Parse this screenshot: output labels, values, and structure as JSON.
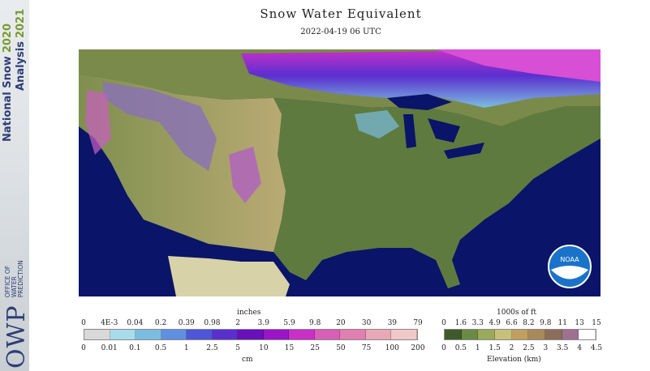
{
  "title": "Snow Water Equivalent",
  "timestamp": "2022-04-19 06 UTC",
  "banner": {
    "line1": "National Snow",
    "line1_year": "2020",
    "line2": "Analysis",
    "line2_year": "2021",
    "logo": "OWP",
    "org_lines": [
      "OFFICE OF",
      "WATER",
      "PREDICTION"
    ]
  },
  "noaa_logo": "NOAA",
  "swe_legend": {
    "top_unit": "inches",
    "bottom_unit": "cm",
    "inches_ticks": [
      "0",
      "4E-3",
      "0.04",
      "0.2",
      "0.39",
      "0.98",
      "2",
      "3.9",
      "5.9",
      "9.8",
      "20",
      "30",
      "39",
      "79"
    ],
    "cm_ticks": [
      "0",
      "0.01",
      "0.1",
      "0.5",
      "1",
      "2.5",
      "5",
      "10",
      "15",
      "25",
      "50",
      "75",
      "100",
      "200"
    ],
    "colors": [
      "#d9d9d9",
      "#a8dcea",
      "#7bbde0",
      "#5f8fe0",
      "#4f55d8",
      "#5a2fd0",
      "#6a10b8",
      "#9a14c8",
      "#c830c8",
      "#d85fb5",
      "#e07fb0",
      "#e8a8b8",
      "#f0c8c8"
    ]
  },
  "elev_legend": {
    "top_unit": "1000s of ft",
    "bottom_unit": "Elevation (km)",
    "ft_ticks": [
      "0",
      "1.6",
      "3.3",
      "4.9",
      "6.6",
      "8.2",
      "9.8",
      "11",
      "13",
      "15"
    ],
    "km_ticks": [
      "0",
      "0.5",
      "1",
      "1.5",
      "2",
      "2.5",
      "3",
      "3.5",
      "4",
      "4.5"
    ],
    "colors": [
      "#3f5a2a",
      "#6b8b45",
      "#9aaa5a",
      "#c8c07a",
      "#c0a060",
      "#a88a5a",
      "#8a6e5a",
      "#a07090",
      "#ffffff"
    ]
  }
}
